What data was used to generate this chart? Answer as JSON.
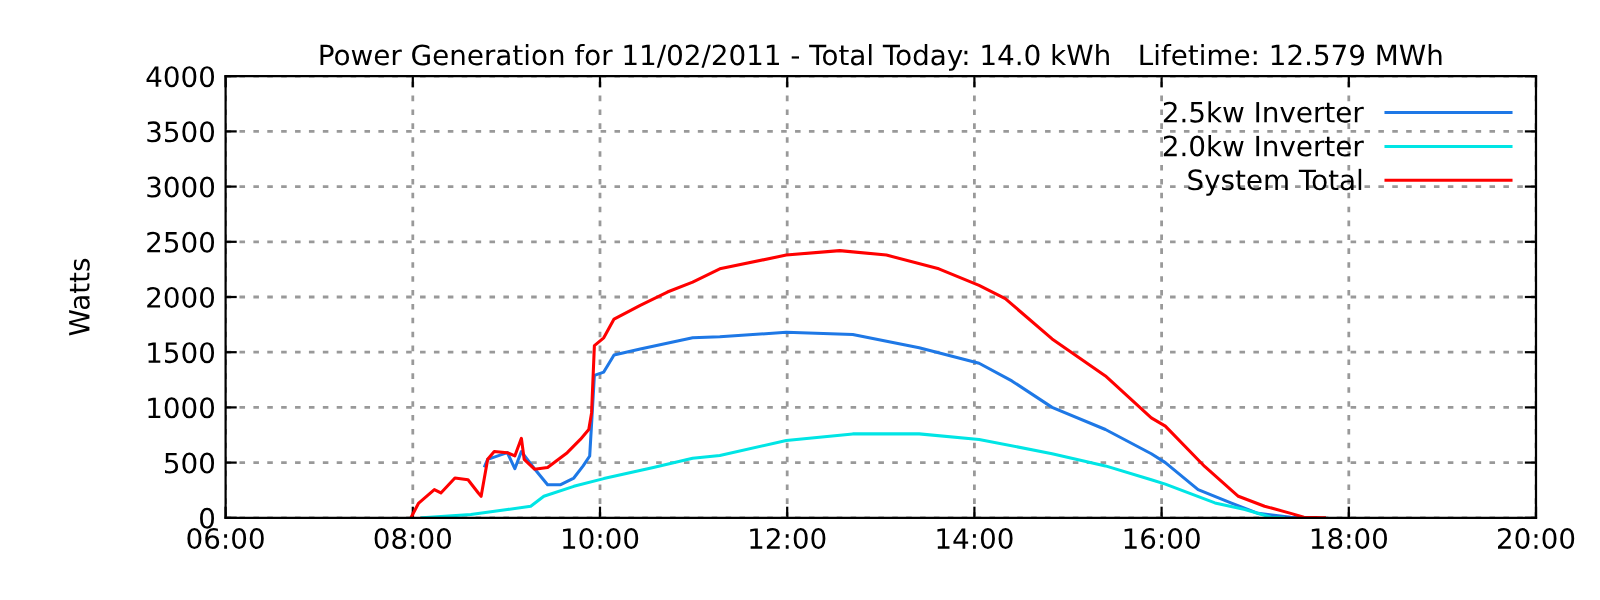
{
  "chart_data": {
    "type": "line",
    "title": "Power Generation for 11/02/2011 - Total Today: 14.0 kWh   Lifetime: 12.579 MWh",
    "ylabel": "Watts",
    "xlim": [
      6,
      20
    ],
    "xticks": [
      {
        "value": 6,
        "label": "06:00"
      },
      {
        "value": 8,
        "label": "08:00"
      },
      {
        "value": 10,
        "label": "10:00"
      },
      {
        "value": 12,
        "label": "12:00"
      },
      {
        "value": 14,
        "label": "14:00"
      },
      {
        "value": 16,
        "label": "16:00"
      },
      {
        "value": 18,
        "label": "18:00"
      },
      {
        "value": 20,
        "label": "20:00"
      }
    ],
    "ylim": [
      0,
      4000
    ],
    "yticks": [
      0,
      500,
      1000,
      1500,
      2000,
      2500,
      3000,
      3500,
      4000
    ],
    "grid": true,
    "legend": "top right",
    "marker": "none",
    "line_style": "solid",
    "series": [
      {
        "name": "2.5kw Inverter",
        "color": "#1e78e6",
        "x": [
          8.77,
          8.8,
          8.87,
          9.01,
          9.09,
          9.16,
          9.3,
          9.44,
          9.58,
          9.72,
          9.82,
          9.89,
          9.94,
          10.04,
          10.15,
          10.43,
          10.99,
          11.28,
          11.99,
          12.7,
          13.41,
          14.05,
          14.4,
          14.83,
          15.4,
          15.89,
          16.04,
          16.39,
          16.74,
          17.03,
          17.38,
          17.5
        ],
        "values": [
          470,
          530,
          550,
          590,
          445,
          600,
          445,
          300,
          300,
          360,
          470,
          560,
          1290,
          1320,
          1475,
          1530,
          1630,
          1640,
          1680,
          1660,
          1540,
          1400,
          1240,
          1000,
          800,
          580,
          500,
          255,
          135,
          40,
          5,
          0
        ]
      },
      {
        "name": "2.0kw Inverter",
        "color": "#00e5e5",
        "x": [
          8.1,
          8.62,
          9.01,
          9.26,
          9.4,
          9.72,
          10.04,
          10.57,
          10.99,
          11.28,
          11.99,
          12.7,
          13.41,
          14.05,
          14.83,
          15.4,
          15.89,
          16.04,
          16.57,
          16.89,
          17.17,
          17.3
        ],
        "values": [
          0,
          30,
          75,
          105,
          195,
          285,
          355,
          455,
          540,
          565,
          700,
          760,
          760,
          710,
          580,
          470,
          345,
          305,
          135,
          75,
          5,
          0
        ]
      },
      {
        "name": "System Total",
        "color": "#ff0000",
        "x": [
          7.98,
          8.06,
          8.23,
          8.3,
          8.45,
          8.59,
          8.7,
          8.73,
          8.8,
          8.87,
          9.01,
          9.09,
          9.16,
          9.19,
          9.3,
          9.44,
          9.65,
          9.79,
          9.88,
          9.91,
          9.94,
          10.04,
          10.15,
          10.43,
          10.72,
          10.99,
          11.28,
          11.99,
          12.56,
          13.06,
          13.62,
          14.05,
          14.33,
          14.83,
          15.4,
          15.89,
          16.04,
          16.46,
          16.82,
          17.1,
          17.38,
          17.52,
          17.74
        ],
        "values": [
          0,
          130,
          255,
          225,
          360,
          345,
          225,
          195,
          530,
          600,
          590,
          560,
          720,
          530,
          440,
          455,
          590,
          710,
          800,
          950,
          1560,
          1630,
          1800,
          1925,
          2045,
          2135,
          2255,
          2380,
          2420,
          2380,
          2255,
          2105,
          1985,
          1620,
          1285,
          905,
          830,
          465,
          195,
          105,
          40,
          5,
          0
        ]
      }
    ]
  }
}
